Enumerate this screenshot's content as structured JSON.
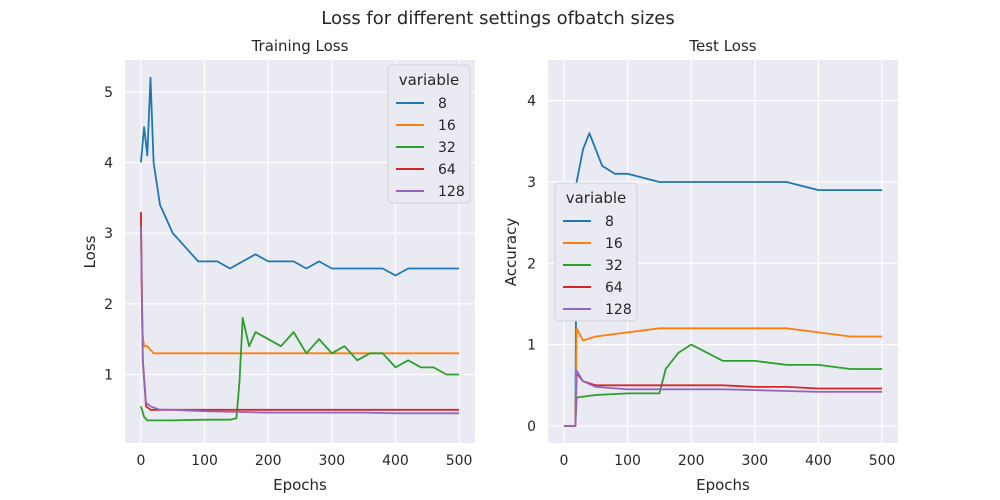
{
  "figure": {
    "suptitle": "Loss for different settings ofbatch sizes"
  },
  "chart_data": [
    {
      "type": "line",
      "title": "Training Loss",
      "xlabel": "Epochs",
      "ylabel": "Loss",
      "xlim": [
        -25,
        525
      ],
      "ylim": [
        0.03,
        5.45
      ],
      "xticks": [
        0,
        100,
        200,
        300,
        400,
        500
      ],
      "yticks": [
        1,
        2,
        3,
        4,
        5
      ],
      "grid": true,
      "legend": {
        "title": "variable",
        "placement": "upper-right"
      },
      "series": [
        {
          "name": "8",
          "color": "#1f77b4",
          "x": [
            0,
            5,
            10,
            15,
            20,
            30,
            40,
            50,
            60,
            70,
            80,
            90,
            100,
            120,
            140,
            160,
            180,
            200,
            220,
            240,
            260,
            280,
            300,
            320,
            340,
            360,
            380,
            400,
            420,
            440,
            460,
            480,
            500
          ],
          "y": [
            4.0,
            4.5,
            4.1,
            5.2,
            4.0,
            3.4,
            3.2,
            3.0,
            2.9,
            2.8,
            2.7,
            2.6,
            2.6,
            2.6,
            2.5,
            2.6,
            2.7,
            2.6,
            2.6,
            2.6,
            2.5,
            2.6,
            2.5,
            2.5,
            2.5,
            2.5,
            2.5,
            2.4,
            2.5,
            2.5,
            2.5,
            2.5,
            2.5
          ]
        },
        {
          "name": "16",
          "color": "#ff7f0e",
          "x": [
            0,
            2,
            5,
            10,
            20,
            40,
            60,
            80,
            100,
            150,
            200,
            250,
            300,
            350,
            400,
            450,
            500
          ],
          "y": [
            3.2,
            1.6,
            1.4,
            1.4,
            1.3,
            1.3,
            1.3,
            1.3,
            1.3,
            1.3,
            1.3,
            1.3,
            1.3,
            1.3,
            1.3,
            1.3,
            1.3
          ]
        },
        {
          "name": "32",
          "color": "#2ca02c",
          "x": [
            0,
            5,
            10,
            50,
            100,
            140,
            150,
            155,
            160,
            170,
            180,
            200,
            220,
            240,
            260,
            280,
            300,
            320,
            340,
            360,
            380,
            400,
            420,
            440,
            460,
            480,
            500
          ],
          "y": [
            0.55,
            0.4,
            0.35,
            0.35,
            0.36,
            0.36,
            0.38,
            0.9,
            1.8,
            1.4,
            1.6,
            1.5,
            1.4,
            1.6,
            1.3,
            1.5,
            1.3,
            1.4,
            1.2,
            1.3,
            1.3,
            1.1,
            1.2,
            1.1,
            1.1,
            1.0,
            1.0
          ]
        },
        {
          "name": "64",
          "color": "#d62728",
          "x": [
            0,
            3,
            8,
            15,
            30,
            50,
            100,
            150,
            200,
            250,
            300,
            350,
            400,
            450,
            500
          ],
          "y": [
            3.3,
            1.2,
            0.55,
            0.5,
            0.5,
            0.5,
            0.5,
            0.5,
            0.5,
            0.5,
            0.5,
            0.5,
            0.5,
            0.5,
            0.5
          ]
        },
        {
          "name": "128",
          "color": "#9467bd",
          "x": [
            0,
            3,
            8,
            15,
            30,
            50,
            100,
            150,
            200,
            250,
            300,
            350,
            400,
            450,
            500
          ],
          "y": [
            3.1,
            1.2,
            0.6,
            0.55,
            0.5,
            0.5,
            0.48,
            0.47,
            0.46,
            0.46,
            0.46,
            0.46,
            0.45,
            0.45,
            0.45
          ]
        }
      ]
    },
    {
      "type": "line",
      "title": "Test Loss",
      "xlabel": "Epochs",
      "ylabel": "Accuracy",
      "xlim": [
        -25,
        525
      ],
      "ylim": [
        -0.21,
        4.5
      ],
      "xticks": [
        0,
        100,
        200,
        300,
        400,
        500
      ],
      "yticks": [
        0,
        1,
        2,
        3,
        4
      ],
      "grid": true,
      "legend": {
        "title": "variable",
        "placement": "center-left"
      },
      "series": [
        {
          "name": "8",
          "color": "#1f77b4",
          "x": [
            0,
            15,
            18,
            20,
            30,
            40,
            60,
            80,
            100,
            150,
            200,
            250,
            300,
            350,
            400,
            450,
            500
          ],
          "y": [
            0,
            0,
            0,
            3.0,
            3.4,
            3.6,
            3.2,
            3.1,
            3.1,
            3.0,
            3.0,
            3.0,
            3.0,
            3.0,
            2.9,
            2.9,
            2.9
          ]
        },
        {
          "name": "16",
          "color": "#ff7f0e",
          "x": [
            0,
            15,
            18,
            20,
            30,
            50,
            100,
            150,
            200,
            250,
            300,
            350,
            400,
            450,
            500
          ],
          "y": [
            0,
            0,
            0,
            1.2,
            1.05,
            1.1,
            1.15,
            1.2,
            1.2,
            1.2,
            1.2,
            1.2,
            1.15,
            1.1,
            1.1
          ]
        },
        {
          "name": "32",
          "color": "#2ca02c",
          "x": [
            0,
            15,
            18,
            20,
            50,
            100,
            150,
            160,
            180,
            200,
            250,
            300,
            350,
            400,
            450,
            500
          ],
          "y": [
            0,
            0,
            0,
            0.35,
            0.38,
            0.4,
            0.4,
            0.7,
            0.9,
            1.0,
            0.8,
            0.8,
            0.75,
            0.75,
            0.7,
            0.7
          ]
        },
        {
          "name": "64",
          "color": "#d62728",
          "x": [
            0,
            15,
            18,
            20,
            30,
            50,
            100,
            150,
            200,
            250,
            300,
            350,
            400,
            450,
            500
          ],
          "y": [
            0,
            0,
            0,
            0.65,
            0.55,
            0.5,
            0.5,
            0.5,
            0.5,
            0.5,
            0.48,
            0.48,
            0.46,
            0.46,
            0.46
          ]
        },
        {
          "name": "128",
          "color": "#9467bd",
          "x": [
            0,
            15,
            18,
            20,
            30,
            50,
            100,
            150,
            200,
            250,
            300,
            350,
            400,
            450,
            500
          ],
          "y": [
            0,
            0,
            0,
            0.68,
            0.55,
            0.48,
            0.45,
            0.45,
            0.45,
            0.45,
            0.44,
            0.43,
            0.42,
            0.42,
            0.42
          ]
        }
      ]
    }
  ]
}
